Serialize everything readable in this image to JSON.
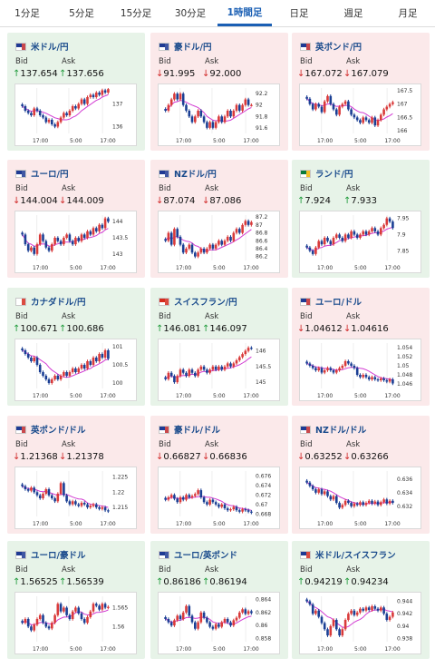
{
  "tabs": [
    {
      "label": "1分足",
      "active": false
    },
    {
      "label": "5分足",
      "active": false
    },
    {
      "label": "15分足",
      "active": false
    },
    {
      "label": "30分足",
      "active": false
    },
    {
      "label": "1時間足",
      "active": true
    },
    {
      "label": "日足",
      "active": false
    },
    {
      "label": "週足",
      "active": false
    },
    {
      "label": "月足",
      "active": false
    }
  ],
  "labels": {
    "bid": "Bid",
    "ask": "Ask"
  },
  "colors": {
    "up_bg": "#e7f3e8",
    "down_bg": "#fbe9ea",
    "candle_up": "#d93a3a",
    "candle_down": "#1b3f94",
    "ma": "#d23ad2",
    "up_arrow": "#1f9a3a",
    "down_arrow": "#d12a2a",
    "link": "#1a4b8c"
  },
  "cards": [
    {
      "pair": "米ドル/円",
      "flag": "us",
      "dir": "up",
      "bid": "137.654",
      "ask": "137.656",
      "chart_data": {
        "type": "candlestick",
        "x_ticks": [
          "17:00",
          "5:00",
          "17:00"
        ],
        "y_ticks": [
          "136",
          "137"
        ],
        "ylim": [
          135.7,
          137.7
        ],
        "closes": [
          136.9,
          136.7,
          136.6,
          136.5,
          136.8,
          136.7,
          136.5,
          136.4,
          136.2,
          136.3,
          136.1,
          136.0,
          136.2,
          136.4,
          136.6,
          136.5,
          136.7,
          136.9,
          136.8,
          137.0,
          137.2,
          137.0,
          137.3,
          137.4,
          137.3,
          137.5,
          137.4,
          137.6,
          137.5,
          137.65
        ]
      }
    },
    {
      "pair": "豪ドル/円",
      "flag": "au",
      "dir": "down",
      "bid": "91.995",
      "ask": "92.000",
      "chart_data": {
        "type": "candlestick",
        "x_ticks": [
          "17:00",
          "5:00",
          "17:00"
        ],
        "y_ticks": [
          "92.2",
          "92",
          "91.8",
          "91.6"
        ],
        "ylim": [
          91.5,
          92.3
        ],
        "closes": [
          91.9,
          92.0,
          92.1,
          92.2,
          92.1,
          92.2,
          92.0,
          91.9,
          91.8,
          91.7,
          91.8,
          91.9,
          91.8,
          91.7,
          91.6,
          91.7,
          91.6,
          91.7,
          91.8,
          91.7,
          91.8,
          91.9,
          91.8,
          91.9,
          92.0,
          91.9,
          92.0,
          92.1,
          92.0,
          92.0
        ]
      }
    },
    {
      "pair": "英ポンド/円",
      "flag": "gb",
      "dir": "down",
      "bid": "167.072",
      "ask": "167.079",
      "chart_data": {
        "type": "candlestick",
        "x_ticks": [
          "17:00",
          "5:00",
          "17:00"
        ],
        "y_ticks": [
          "167.5",
          "167",
          "166.5",
          "166"
        ],
        "ylim": [
          165.9,
          167.6
        ],
        "closes": [
          167.2,
          167.0,
          166.8,
          167.0,
          166.9,
          166.7,
          167.1,
          167.3,
          167.0,
          166.8,
          166.6,
          166.9,
          167.0,
          167.1,
          166.8,
          166.6,
          166.5,
          166.4,
          166.3,
          166.5,
          166.4,
          166.3,
          166.5,
          166.2,
          166.4,
          166.6,
          166.8,
          166.9,
          167.0,
          167.07
        ]
      }
    },
    {
      "pair": "ユーロ/円",
      "flag": "eu",
      "dir": "down",
      "bid": "144.004",
      "ask": "144.009",
      "chart_data": {
        "type": "candlestick",
        "x_ticks": [
          "17:00",
          "5:00",
          "17:00"
        ],
        "y_ticks": [
          "144",
          "143.5",
          "143"
        ],
        "ylim": [
          142.8,
          144.2
        ],
        "closes": [
          143.6,
          143.3,
          143.1,
          143.2,
          143.0,
          143.3,
          143.6,
          143.4,
          143.2,
          143.1,
          143.3,
          143.5,
          143.4,
          143.3,
          143.5,
          143.6,
          143.4,
          143.3,
          143.5,
          143.4,
          143.6,
          143.5,
          143.7,
          143.6,
          143.8,
          143.7,
          143.9,
          143.8,
          144.1,
          144.0
        ]
      }
    },
    {
      "pair": "NZドル/円",
      "flag": "nz",
      "dir": "down",
      "bid": "87.074",
      "ask": "87.086",
      "chart_data": {
        "type": "candlestick",
        "x_ticks": [
          "17:00",
          "5:00",
          "17:00"
        ],
        "y_ticks": [
          "87.2",
          "87",
          "86.8",
          "86.6",
          "86.4",
          "86.2"
        ],
        "ylim": [
          86.1,
          87.25
        ],
        "closes": [
          86.6,
          86.8,
          86.5,
          86.9,
          86.7,
          86.5,
          86.3,
          86.4,
          86.5,
          86.3,
          86.2,
          86.3,
          86.4,
          86.3,
          86.4,
          86.5,
          86.4,
          86.5,
          86.6,
          86.5,
          86.6,
          86.7,
          86.6,
          86.8,
          86.9,
          86.8,
          87.0,
          87.1,
          87.0,
          87.07
        ]
      }
    },
    {
      "pair": "ランド/円",
      "flag": "za",
      "dir": "up",
      "bid": "7.924",
      "ask": "7.933",
      "chart_data": {
        "type": "candlestick",
        "x_ticks": [
          "17:00",
          "5:00",
          "17:00"
        ],
        "y_ticks": [
          "7.95",
          "7.9",
          "7.85"
        ],
        "ylim": [
          7.82,
          7.96
        ],
        "closes": [
          7.86,
          7.85,
          7.84,
          7.86,
          7.88,
          7.87,
          7.89,
          7.88,
          7.87,
          7.89,
          7.9,
          7.89,
          7.88,
          7.9,
          7.89,
          7.91,
          7.9,
          7.89,
          7.9,
          7.91,
          7.9,
          7.91,
          7.92,
          7.91,
          7.9,
          7.92,
          7.93,
          7.95,
          7.94,
          7.92
        ]
      }
    },
    {
      "pair": "カナダドル/円",
      "flag": "ca",
      "dir": "up",
      "bid": "100.671",
      "ask": "100.686",
      "chart_data": {
        "type": "candlestick",
        "x_ticks": [
          "17:00",
          "5:00",
          "17:00"
        ],
        "y_ticks": [
          "101",
          "100.5",
          "100"
        ],
        "ylim": [
          99.85,
          101.1
        ],
        "closes": [
          100.9,
          100.8,
          100.7,
          100.6,
          100.7,
          100.5,
          100.3,
          100.2,
          100.1,
          100.0,
          100.1,
          100.2,
          100.1,
          100.2,
          100.3,
          100.2,
          100.3,
          100.4,
          100.3,
          100.4,
          100.5,
          100.4,
          100.6,
          100.5,
          100.7,
          100.6,
          100.8,
          100.7,
          100.9,
          100.67
        ]
      }
    },
    {
      "pair": "スイスフラン/円",
      "flag": "ch",
      "dir": "up",
      "bid": "146.081",
      "ask": "146.097",
      "chart_data": {
        "type": "candlestick",
        "x_ticks": [
          "17:00",
          "5:00",
          "17:00"
        ],
        "y_ticks": [
          "146",
          "145.5",
          "145"
        ],
        "ylim": [
          144.8,
          146.25
        ],
        "closes": [
          145.1,
          145.3,
          145.2,
          145.0,
          145.2,
          145.4,
          145.3,
          145.2,
          145.4,
          145.3,
          145.2,
          145.4,
          145.5,
          145.4,
          145.3,
          145.4,
          145.5,
          145.4,
          145.5,
          145.4,
          145.5,
          145.6,
          145.5,
          145.6,
          145.7,
          145.8,
          145.9,
          146.0,
          146.1,
          146.08
        ]
      }
    },
    {
      "pair": "ユーロ/ドル",
      "flag": "euus",
      "dir": "down",
      "bid": "1.04612",
      "ask": "1.04616",
      "chart_data": {
        "type": "candlestick",
        "x_ticks": [
          "17:00",
          "5:00",
          "17:00"
        ],
        "y_ticks": [
          "1.054",
          "1.052",
          "1.05",
          "1.048",
          "1.046"
        ],
        "ylim": [
          1.045,
          1.055
        ],
        "closes": [
          1.0505,
          1.05,
          1.0495,
          1.049,
          1.0495,
          1.0485,
          1.049,
          1.0495,
          1.049,
          1.0485,
          1.049,
          1.0495,
          1.05,
          1.051,
          1.0505,
          1.05,
          1.0495,
          1.048,
          1.0475,
          1.048,
          1.0475,
          1.047,
          1.0475,
          1.047,
          1.0468,
          1.0472,
          1.0468,
          1.0465,
          1.047,
          1.0461
        ]
      }
    },
    {
      "pair": "英ポンド/ドル",
      "flag": "gbus",
      "dir": "down",
      "bid": "1.21368",
      "ask": "1.21378",
      "chart_data": {
        "type": "candlestick",
        "x_ticks": [
          "17:00",
          "5:00",
          "17:00"
        ],
        "y_ticks": [
          "1.225",
          "1.22",
          "1.215"
        ],
        "ylim": [
          1.212,
          1.227
        ],
        "closes": [
          1.222,
          1.221,
          1.2205,
          1.2215,
          1.22,
          1.219,
          1.218,
          1.2195,
          1.221,
          1.219,
          1.218,
          1.217,
          1.2195,
          1.223,
          1.219,
          1.217,
          1.216,
          1.217,
          1.216,
          1.2155,
          1.2165,
          1.216,
          1.215,
          1.2155,
          1.216,
          1.215,
          1.2145,
          1.215,
          1.214,
          1.2137
        ]
      }
    },
    {
      "pair": "豪ドル/ドル",
      "flag": "auus",
      "dir": "down",
      "bid": "0.66827",
      "ask": "0.66836",
      "chart_data": {
        "type": "candlestick",
        "x_ticks": [
          "17:00",
          "5:00",
          "17:00"
        ],
        "y_ticks": [
          "0.676",
          "0.674",
          "0.672",
          "0.67",
          "0.668"
        ],
        "ylim": [
          0.6675,
          0.677
        ],
        "closes": [
          0.671,
          0.6715,
          0.672,
          0.6712,
          0.6705,
          0.6715,
          0.671,
          0.672,
          0.6715,
          0.6718,
          0.6722,
          0.673,
          0.6715,
          0.6705,
          0.67,
          0.671,
          0.6705,
          0.67,
          0.6695,
          0.67,
          0.6692,
          0.6688,
          0.669,
          0.6695,
          0.6688,
          0.6685,
          0.669,
          0.6688,
          0.6685,
          0.6683
        ]
      }
    },
    {
      "pair": "NZドル/ドル",
      "flag": "nzus",
      "dir": "down",
      "bid": "0.63252",
      "ask": "0.63266",
      "chart_data": {
        "type": "candlestick",
        "x_ticks": [
          "17:00",
          "5:00",
          "17:00"
        ],
        "y_ticks": [
          "0.636",
          "0.634",
          "0.632"
        ],
        "ylim": [
          0.6305,
          0.6372
        ],
        "closes": [
          0.6355,
          0.635,
          0.6345,
          0.634,
          0.6345,
          0.6338,
          0.6342,
          0.6335,
          0.633,
          0.6335,
          0.6325,
          0.6318,
          0.6322,
          0.6328,
          0.6325,
          0.632,
          0.6324,
          0.6322,
          0.6326,
          0.6322,
          0.6325,
          0.6328,
          0.6324,
          0.6327,
          0.6322,
          0.6326,
          0.633,
          0.6324,
          0.6328,
          0.6325
        ]
      }
    },
    {
      "pair": "ユーロ/豪ドル",
      "flag": "euau",
      "dir": "up",
      "bid": "1.56525",
      "ask": "1.56539",
      "chart_data": {
        "type": "candlestick",
        "x_ticks": [
          "17:00",
          "5:00",
          "17:00"
        ],
        "y_ticks": [
          "1.565",
          "1.56"
        ],
        "ylim": [
          1.556,
          1.568
        ],
        "closes": [
          1.561,
          1.562,
          1.56,
          1.559,
          1.5605,
          1.562,
          1.563,
          1.561,
          1.56,
          1.5595,
          1.561,
          1.563,
          1.566,
          1.564,
          1.565,
          1.563,
          1.562,
          1.564,
          1.565,
          1.5635,
          1.562,
          1.561,
          1.5625,
          1.564,
          1.566,
          1.5655,
          1.5645,
          1.566,
          1.565,
          1.5652
        ]
      }
    },
    {
      "pair": "ユーロ/英ポンド",
      "flag": "eugb",
      "dir": "up",
      "bid": "0.86186",
      "ask": "0.86194",
      "chart_data": {
        "type": "candlestick",
        "x_ticks": [
          "17:00",
          "5:00",
          "17:00"
        ],
        "y_ticks": [
          "0.864",
          "0.862",
          "0.86",
          "0.858"
        ],
        "ylim": [
          0.8575,
          0.8645
        ],
        "closes": [
          0.861,
          0.8605,
          0.86,
          0.8608,
          0.8615,
          0.861,
          0.862,
          0.863,
          0.8615,
          0.8605,
          0.8595,
          0.8605,
          0.862,
          0.8612,
          0.8605,
          0.8598,
          0.8595,
          0.8602,
          0.8598,
          0.8605,
          0.861,
          0.8605,
          0.86,
          0.8608,
          0.8612,
          0.862,
          0.8625,
          0.8618,
          0.8622,
          0.8619
        ]
      }
    },
    {
      "pair": "米ドル/スイスフラン",
      "flag": "usch",
      "dir": "up",
      "bid": "0.94219",
      "ask": "0.94234",
      "chart_data": {
        "type": "candlestick",
        "x_ticks": [
          "17:00",
          "5:00",
          "17:00"
        ],
        "y_ticks": [
          "0.944",
          "0.942",
          "0.94",
          "0.938"
        ],
        "ylim": [
          0.9375,
          0.9448
        ],
        "closes": [
          0.944,
          0.9435,
          0.942,
          0.9425,
          0.9415,
          0.9405,
          0.9395,
          0.9385,
          0.94,
          0.941,
          0.9395,
          0.9385,
          0.9395,
          0.941,
          0.942,
          0.9425,
          0.9418,
          0.9422,
          0.9428,
          0.9425,
          0.943,
          0.9426,
          0.9432,
          0.9428,
          0.9425,
          0.943,
          0.942,
          0.941,
          0.9415,
          0.9422
        ]
      }
    }
  ]
}
